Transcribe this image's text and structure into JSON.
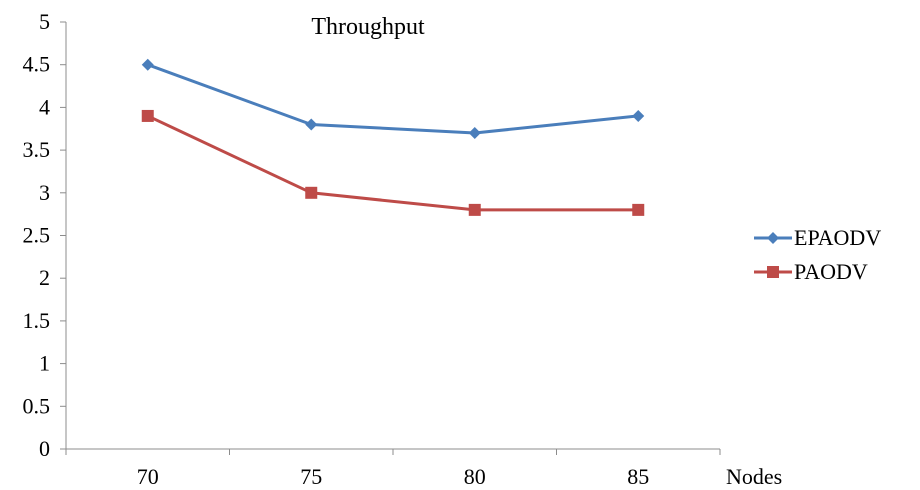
{
  "chart_data": {
    "type": "line",
    "title": "Throughput",
    "xlabel": "Nodes",
    "ylabel": "",
    "categories": [
      "70",
      "75",
      "80",
      "85"
    ],
    "ylim": [
      0,
      5
    ],
    "yticks": [
      "0",
      "0.5",
      "1",
      "1.5",
      "2",
      "2.5",
      "3",
      "3.5",
      "4",
      "4.5",
      "5"
    ],
    "grid": false,
    "legend_position": "right",
    "series": [
      {
        "name": "EPAODV",
        "values": [
          4.5,
          3.8,
          3.7,
          3.9
        ],
        "color": "#4a7ebb",
        "marker": "diamond"
      },
      {
        "name": "PAODV",
        "values": [
          3.9,
          3.0,
          2.8,
          2.8
        ],
        "color": "#be4b48",
        "marker": "square"
      }
    ]
  }
}
